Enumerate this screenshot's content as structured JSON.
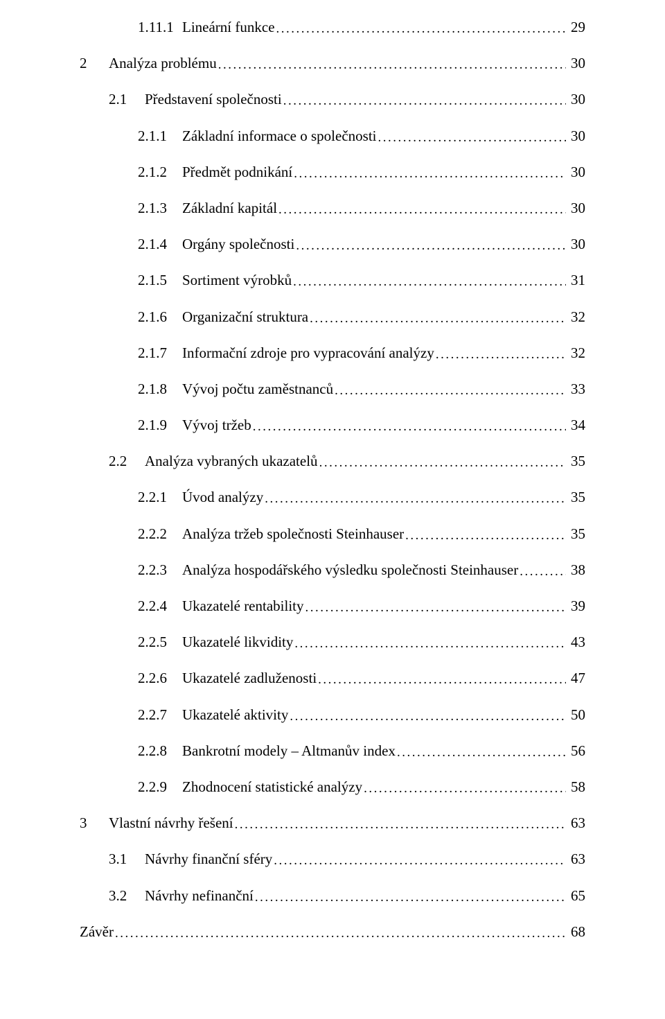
{
  "toc": [
    {
      "level": 4,
      "num": "1.11.1",
      "title": "Lineární funkce",
      "page": "29"
    },
    {
      "level": 2,
      "num": "2",
      "title": "Analýza problému",
      "page": "30"
    },
    {
      "level": 3,
      "num": "2.1",
      "title": "Představení společnosti",
      "page": "30"
    },
    {
      "level": 4,
      "num": "2.1.1",
      "title": "Základní informace o společnosti",
      "page": "30"
    },
    {
      "level": 4,
      "num": "2.1.2",
      "title": "Předmět podnikání",
      "page": "30"
    },
    {
      "level": 4,
      "num": "2.1.3",
      "title": "Základní kapitál",
      "page": "30"
    },
    {
      "level": 4,
      "num": "2.1.4",
      "title": "Orgány společnosti",
      "page": "30"
    },
    {
      "level": 4,
      "num": "2.1.5",
      "title": "Sortiment výrobků",
      "page": "31"
    },
    {
      "level": 4,
      "num": "2.1.6",
      "title": "Organizační struktura",
      "page": "32"
    },
    {
      "level": 4,
      "num": "2.1.7",
      "title": "Informační zdroje pro vypracování analýzy",
      "page": "32"
    },
    {
      "level": 4,
      "num": "2.1.8",
      "title": "Vývoj počtu zaměstnanců",
      "page": "33"
    },
    {
      "level": 4,
      "num": "2.1.9",
      "title": "Vývoj tržeb",
      "page": "34"
    },
    {
      "level": 3,
      "num": "2.2",
      "title": "Analýza vybraných ukazatelů",
      "page": "35"
    },
    {
      "level": 4,
      "num": "2.2.1",
      "title": "Úvod analýzy",
      "page": "35"
    },
    {
      "level": 4,
      "num": "2.2.2",
      "title": "Analýza tržeb společnosti Steinhauser",
      "page": "35"
    },
    {
      "level": 4,
      "num": "2.2.3",
      "title": "Analýza hospodářského výsledku společnosti Steinhauser",
      "page": "38"
    },
    {
      "level": 4,
      "num": "2.2.4",
      "title": "Ukazatelé rentability",
      "page": "39"
    },
    {
      "level": 4,
      "num": "2.2.5",
      "title": "Ukazatelé likvidity",
      "page": "43"
    },
    {
      "level": 4,
      "num": "2.2.6",
      "title": "Ukazatelé zadluženosti",
      "page": "47"
    },
    {
      "level": 4,
      "num": "2.2.7",
      "title": "Ukazatelé aktivity",
      "page": "50"
    },
    {
      "level": 4,
      "num": "2.2.8",
      "title": "Bankrotní modely – Altmanův index",
      "page": "56"
    },
    {
      "level": 4,
      "num": "2.2.9",
      "title": "Zhodnocení statistické analýzy",
      "page": "58"
    },
    {
      "level": 2,
      "num": "3",
      "title": "Vlastní návrhy řešení",
      "page": "63"
    },
    {
      "level": 3,
      "num": "3.1",
      "title": "Návrhy finanční sféry",
      "page": "63"
    },
    {
      "level": 3,
      "num": "3.2",
      "title": "Návrhy nefinanční",
      "page": "65"
    },
    {
      "level": "final",
      "num": "",
      "title": "Závěr",
      "page": "68"
    }
  ]
}
